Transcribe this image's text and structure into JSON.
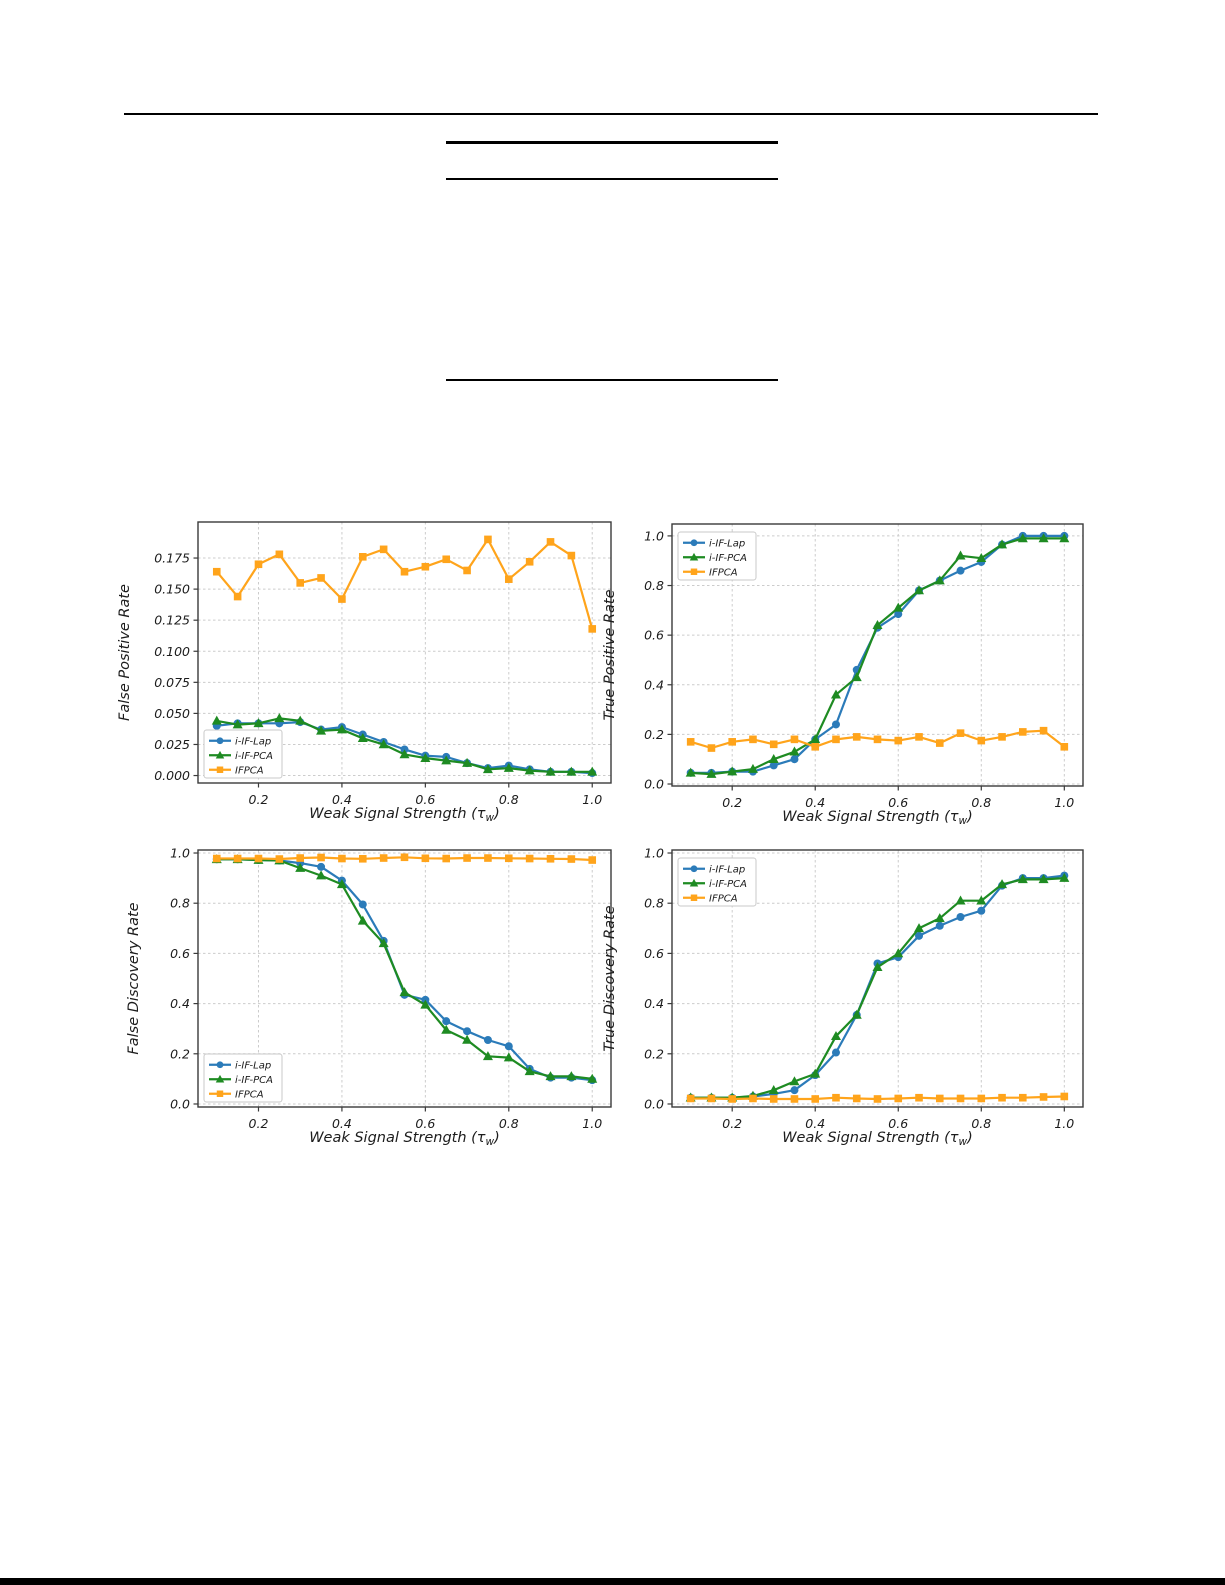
{
  "page": {
    "kind": "paper-figure-page",
    "visible_text_outside_charts": ""
  },
  "colors": {
    "series_blue": "#2b7bb9",
    "series_green": "#1e8b22",
    "series_orange": "#ffa41b",
    "grid": "#cccccc",
    "spine": "#3a3a3a",
    "text": "#1c1c1c",
    "legend_border": "#c9c9c9",
    "legend_bg": "#ffffff"
  },
  "x_label": {
    "prefix": "Weak Signal Strength (τ",
    "sub": "w",
    "suffix": ")"
  },
  "x_ticks": {
    "values": [
      0.2,
      0.4,
      0.6,
      0.8,
      1.0
    ],
    "labels": [
      "0.2",
      "0.4",
      "0.6",
      "0.8",
      "1.0"
    ]
  },
  "legend": {
    "entries": [
      {
        "label": "i-IF-Lap",
        "marker": "circle",
        "color_key": "series_blue"
      },
      {
        "label": "i-IF-PCA",
        "marker": "triangle",
        "color_key": "series_green"
      },
      {
        "label": "IFPCA",
        "marker": "square",
        "color_key": "series_orange"
      }
    ]
  },
  "chart_data": [
    {
      "type": "line",
      "name": "false-positive-rate",
      "xlabel_uses_shared": true,
      "ylabel": "False Positive Rate",
      "xlim": [
        0.055,
        1.045
      ],
      "ylim": [
        -0.006,
        0.204
      ],
      "grid": true,
      "legend_position": "lower-left",
      "yticks": {
        "values": [
          0.0,
          0.025,
          0.05,
          0.075,
          0.1,
          0.125,
          0.15,
          0.175
        ],
        "labels": [
          "0.000",
          "0.025",
          "0.050",
          "0.075",
          "0.100",
          "0.125",
          "0.150",
          "0.175"
        ]
      },
      "x": [
        0.1,
        0.15,
        0.2,
        0.25,
        0.3,
        0.35,
        0.4,
        0.45,
        0.5,
        0.55,
        0.6,
        0.65,
        0.7,
        0.75,
        0.8,
        0.85,
        0.9,
        0.95,
        1.0
      ],
      "series": [
        {
          "name": "i-IF-Lap",
          "values": [
            0.04,
            0.042,
            0.042,
            0.042,
            0.043,
            0.037,
            0.039,
            0.033,
            0.027,
            0.021,
            0.016,
            0.015,
            0.01,
            0.006,
            0.008,
            0.005,
            0.003,
            0.003,
            0.002
          ]
        },
        {
          "name": "i-IF-PCA",
          "values": [
            0.044,
            0.041,
            0.042,
            0.046,
            0.044,
            0.036,
            0.037,
            0.03,
            0.025,
            0.017,
            0.014,
            0.012,
            0.01,
            0.005,
            0.006,
            0.004,
            0.003,
            0.003,
            0.003
          ]
        },
        {
          "name": "IFPCA",
          "values": [
            0.164,
            0.144,
            0.17,
            0.178,
            0.155,
            0.159,
            0.142,
            0.176,
            0.182,
            0.164,
            0.168,
            0.174,
            0.165,
            0.19,
            0.158,
            0.172,
            0.188,
            0.177,
            0.118
          ]
        }
      ]
    },
    {
      "type": "line",
      "name": "true-positive-rate",
      "xlabel_uses_shared": true,
      "ylabel": "True Positive Rate",
      "xlim": [
        0.055,
        1.045
      ],
      "ylim": [
        -0.008,
        1.048
      ],
      "grid": true,
      "legend_position": "upper-left",
      "yticks": {
        "values": [
          0.0,
          0.2,
          0.4,
          0.6,
          0.8,
          1.0
        ],
        "labels": [
          "0.0",
          "0.2",
          "0.4",
          "0.6",
          "0.8",
          "1.0"
        ]
      },
      "x": [
        0.1,
        0.15,
        0.2,
        0.25,
        0.3,
        0.35,
        0.4,
        0.45,
        0.5,
        0.55,
        0.6,
        0.65,
        0.7,
        0.75,
        0.8,
        0.85,
        0.9,
        0.95,
        1.0
      ],
      "series": [
        {
          "name": "i-IF-Lap",
          "values": [
            0.045,
            0.045,
            0.05,
            0.05,
            0.075,
            0.1,
            0.18,
            0.24,
            0.46,
            0.63,
            0.685,
            0.78,
            0.82,
            0.86,
            0.895,
            0.965,
            1.0,
            1.0,
            1.0
          ]
        },
        {
          "name": "i-IF-PCA",
          "values": [
            0.045,
            0.04,
            0.05,
            0.06,
            0.1,
            0.13,
            0.18,
            0.36,
            0.43,
            0.64,
            0.71,
            0.78,
            0.82,
            0.92,
            0.91,
            0.965,
            0.99,
            0.99,
            0.99
          ]
        },
        {
          "name": "IFPCA",
          "values": [
            0.17,
            0.145,
            0.17,
            0.18,
            0.16,
            0.18,
            0.15,
            0.18,
            0.19,
            0.18,
            0.175,
            0.19,
            0.165,
            0.205,
            0.175,
            0.19,
            0.21,
            0.215,
            0.15
          ]
        }
      ]
    },
    {
      "type": "line",
      "name": "false-discovery-rate",
      "xlabel_uses_shared": true,
      "ylabel": "False Discovery Rate",
      "xlim": [
        0.055,
        1.045
      ],
      "ylim": [
        -0.012,
        1.012
      ],
      "grid": true,
      "legend_position": "lower-left",
      "yticks": {
        "values": [
          0.0,
          0.2,
          0.4,
          0.6,
          0.8,
          1.0
        ],
        "labels": [
          "0.0",
          "0.2",
          "0.4",
          "0.6",
          "0.8",
          "1.0"
        ]
      },
      "x": [
        0.1,
        0.15,
        0.2,
        0.25,
        0.3,
        0.35,
        0.4,
        0.45,
        0.5,
        0.55,
        0.6,
        0.65,
        0.7,
        0.75,
        0.8,
        0.85,
        0.9,
        0.95,
        1.0
      ],
      "series": [
        {
          "name": "i-IF-Lap",
          "values": [
            0.975,
            0.975,
            0.972,
            0.97,
            0.96,
            0.945,
            0.89,
            0.795,
            0.65,
            0.435,
            0.415,
            0.33,
            0.29,
            0.255,
            0.23,
            0.14,
            0.105,
            0.105,
            0.095
          ]
        },
        {
          "name": "i-IF-PCA",
          "values": [
            0.975,
            0.975,
            0.972,
            0.97,
            0.94,
            0.91,
            0.875,
            0.73,
            0.64,
            0.445,
            0.395,
            0.295,
            0.255,
            0.19,
            0.185,
            0.13,
            0.11,
            0.11,
            0.1
          ]
        },
        {
          "name": "IFPCA",
          "values": [
            0.978,
            0.978,
            0.978,
            0.976,
            0.98,
            0.982,
            0.978,
            0.977,
            0.98,
            0.983,
            0.979,
            0.978,
            0.98,
            0.98,
            0.979,
            0.978,
            0.977,
            0.976,
            0.972
          ]
        }
      ]
    },
    {
      "type": "line",
      "name": "true-discovery-rate",
      "xlabel_uses_shared": true,
      "ylabel": "True Discovery Rate",
      "xlim": [
        0.055,
        1.045
      ],
      "ylim": [
        -0.012,
        1.012
      ],
      "grid": true,
      "legend_position": "upper-left",
      "yticks": {
        "values": [
          0.0,
          0.2,
          0.4,
          0.6,
          0.8,
          1.0
        ],
        "labels": [
          "0.0",
          "0.2",
          "0.4",
          "0.6",
          "0.8",
          "1.0"
        ]
      },
      "x": [
        0.1,
        0.15,
        0.2,
        0.25,
        0.3,
        0.35,
        0.4,
        0.45,
        0.5,
        0.55,
        0.6,
        0.65,
        0.7,
        0.75,
        0.8,
        0.85,
        0.9,
        0.95,
        1.0
      ],
      "series": [
        {
          "name": "i-IF-Lap",
          "values": [
            0.025,
            0.025,
            0.025,
            0.03,
            0.04,
            0.055,
            0.115,
            0.205,
            0.355,
            0.56,
            0.585,
            0.67,
            0.71,
            0.745,
            0.77,
            0.87,
            0.9,
            0.9,
            0.91
          ]
        },
        {
          "name": "i-IF-PCA",
          "values": [
            0.025,
            0.025,
            0.025,
            0.032,
            0.055,
            0.09,
            0.12,
            0.27,
            0.355,
            0.545,
            0.6,
            0.7,
            0.74,
            0.81,
            0.81,
            0.875,
            0.895,
            0.895,
            0.9
          ]
        },
        {
          "name": "IFPCA",
          "values": [
            0.022,
            0.022,
            0.02,
            0.022,
            0.02,
            0.02,
            0.02,
            0.025,
            0.022,
            0.02,
            0.022,
            0.025,
            0.022,
            0.022,
            0.022,
            0.025,
            0.025,
            0.028,
            0.03
          ]
        }
      ]
    }
  ]
}
